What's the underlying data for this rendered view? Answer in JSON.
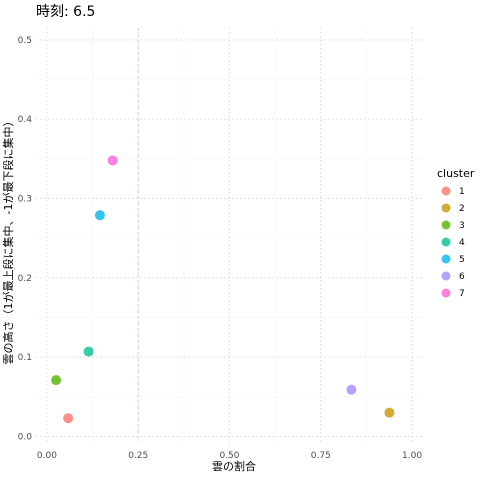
{
  "chart_data": {
    "type": "scatter",
    "title": "時刻: 6.5",
    "xlabel": "雲の割合",
    "ylabel": "雲の高さ（1が最上段に集中、-1が最下段に集中）",
    "xlim": [
      -0.03,
      1.03
    ],
    "ylim": [
      -0.007,
      0.515
    ],
    "x_ticks": [
      "0.00",
      "0.25",
      "0.50",
      "0.75",
      "1.00"
    ],
    "x_tick_values": [
      0.0,
      0.25,
      0.5,
      0.75,
      1.0
    ],
    "y_ticks": [
      "0.0",
      "0.1",
      "0.2",
      "0.3",
      "0.4",
      "0.5"
    ],
    "y_tick_values": [
      0.0,
      0.1,
      0.2,
      0.3,
      0.4,
      0.5
    ],
    "grid": true,
    "reference_line_x": 0.25,
    "legend": {
      "title": "cluster",
      "placement": "right",
      "entries": [
        "1",
        "2",
        "3",
        "4",
        "5",
        "6",
        "7"
      ]
    },
    "points": [
      {
        "cluster": "1",
        "x": 0.058,
        "y": 0.023,
        "color": "#F8766D"
      },
      {
        "cluster": "2",
        "x": 0.938,
        "y": 0.03,
        "color": "#C49A00"
      },
      {
        "cluster": "3",
        "x": 0.025,
        "y": 0.071,
        "color": "#53B400"
      },
      {
        "cluster": "4",
        "x": 0.114,
        "y": 0.107,
        "color": "#00C094"
      },
      {
        "cluster": "5",
        "x": 0.145,
        "y": 0.279,
        "color": "#00B6EB"
      },
      {
        "cluster": "6",
        "x": 0.834,
        "y": 0.059,
        "color": "#A58AFF"
      },
      {
        "cluster": "7",
        "x": 0.18,
        "y": 0.348,
        "color": "#FB61D7"
      }
    ]
  }
}
